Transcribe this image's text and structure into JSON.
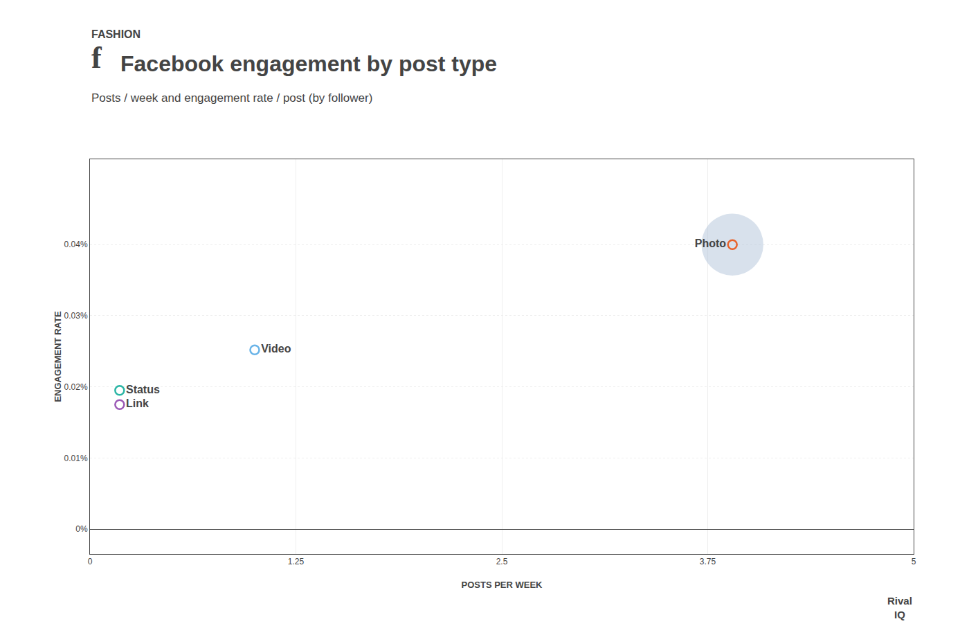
{
  "chart_data": {
    "type": "scatter",
    "title": "Facebook engagement by post type",
    "subtitle": "FASHION",
    "annotations": [
      "Posts / week and engagement rate / post (by follower)",
      "f",
      "Rival",
      "IQ"
    ],
    "xlabel": "POSTS PER WEEK",
    "ylabel": "ENGAGEMENT RATE",
    "xlim": [
      0,
      5
    ],
    "ylim": [
      -3.5e-05,
      0.00052
    ],
    "xticks": [
      0,
      1.25,
      2.5,
      3.75,
      5
    ],
    "yticks": [
      {
        "value": 0,
        "label": "0%"
      },
      {
        "value": 0.0001,
        "label": "0.01%"
      },
      {
        "value": 0.0002,
        "label": "0.02%"
      },
      {
        "value": 0.0003,
        "label": "0.03%"
      },
      {
        "value": 0.0004,
        "label": "0.04%"
      }
    ],
    "grid": true,
    "points": [
      {
        "label": "Photo",
        "x": 3.9,
        "y": 0.0004,
        "color": "#e8622a",
        "marker": "circle-open",
        "bubble_size": 4500,
        "bubble_color": "#b8c8dc"
      },
      {
        "label": "Video",
        "x": 1.0,
        "y": 0.000252,
        "color": "#6ab4e8",
        "marker": "circle-open"
      },
      {
        "label": "Status",
        "x": 0.18,
        "y": 0.000195,
        "color": "#2ab5a5",
        "marker": "circle-open"
      },
      {
        "label": "Link",
        "x": 0.18,
        "y": 0.000175,
        "color": "#9b59b6",
        "marker": "circle-open"
      }
    ]
  }
}
